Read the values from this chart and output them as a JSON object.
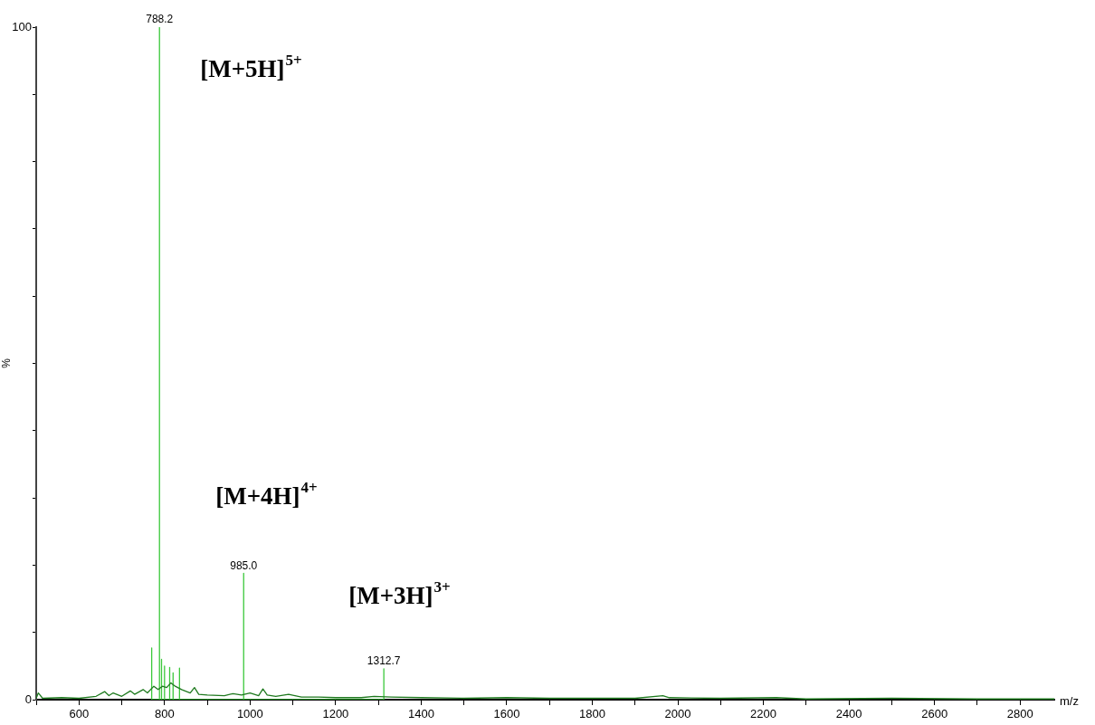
{
  "chart_data": {
    "type": "line",
    "xlabel": "m/z",
    "ylabel": "%",
    "xlim": [
      500,
      2880
    ],
    "ylim": [
      0,
      100
    ],
    "xticks": [
      {
        "value": 500,
        "label": null
      },
      600,
      {
        "value": 700,
        "label": null
      },
      800,
      {
        "value": 900,
        "label": null
      },
      1000,
      {
        "value": 1100,
        "label": null
      },
      1200,
      {
        "value": 1300,
        "label": null
      },
      1400,
      {
        "value": 1500,
        "label": null
      },
      1600,
      {
        "value": 1700,
        "label": null
      },
      1800,
      {
        "value": 1900,
        "label": null
      },
      2000,
      {
        "value": 2100,
        "label": null
      },
      2200,
      {
        "value": 2300,
        "label": null
      },
      2400,
      {
        "value": 2500,
        "label": null
      },
      2600,
      {
        "value": 2700,
        "label": null
      },
      2800
    ],
    "yticks": [
      0,
      {
        "value": 10,
        "label": null
      },
      {
        "value": 20,
        "label": null
      },
      {
        "value": 30,
        "label": null
      },
      {
        "value": 40,
        "label": null
      },
      {
        "value": 50,
        "label": null
      },
      {
        "value": 60,
        "label": null
      },
      {
        "value": 70,
        "label": null
      },
      {
        "value": 80,
        "label": null
      },
      {
        "value": 90,
        "label": null
      },
      100
    ],
    "grid": false,
    "legend": false,
    "marker": "none",
    "line_style": "solid",
    "series": [
      {
        "color": "#1f7a1f",
        "x": [
          500,
          505,
          515,
          560,
          600,
          640,
          660,
          670,
          680,
          700,
          720,
          730,
          750,
          760,
          775,
          785,
          795,
          805,
          815,
          825,
          840,
          860,
          870,
          880,
          900,
          940,
          960,
          980,
          1000,
          1020,
          1030,
          1040,
          1060,
          1090,
          1120,
          1160,
          1200,
          1260,
          1290,
          1330,
          1400,
          1500,
          1600,
          1700,
          1800,
          1900,
          1965,
          1980,
          2100,
          2230,
          2300,
          2500,
          2700,
          2880
        ],
        "values": [
          0.2,
          1.0,
          0.2,
          0.3,
          0.2,
          0.5,
          1.2,
          0.6,
          1.0,
          0.5,
          1.3,
          0.8,
          1.5,
          1.0,
          2.0,
          1.5,
          2.0,
          1.8,
          2.5,
          2.0,
          1.5,
          1.0,
          1.8,
          0.8,
          0.7,
          0.6,
          0.9,
          0.7,
          1.0,
          0.6,
          1.6,
          0.7,
          0.5,
          0.8,
          0.4,
          0.4,
          0.3,
          0.3,
          0.5,
          0.4,
          0.3,
          0.2,
          0.3,
          0.2,
          0.2,
          0.2,
          0.6,
          0.3,
          0.2,
          0.3,
          0.1,
          0.2,
          0.1,
          0.1
        ]
      },
      {
        "color": "#3cc83c",
        "x": [
          770,
          770,
          770,
          788.2,
          788.2,
          788.2,
          793,
          793,
          793,
          800,
          800,
          800,
          812,
          812,
          812,
          820,
          820,
          820,
          835,
          835,
          835,
          985.0,
          985.0,
          985.0,
          1312.7,
          1312.7,
          1312.7
        ],
        "values": [
          0,
          7.7,
          0,
          0,
          100,
          0,
          0,
          6,
          0,
          0,
          5,
          0,
          0,
          4.8,
          0,
          0,
          4.0,
          0,
          0,
          4.7,
          0,
          0,
          18.8,
          0,
          0,
          4.6,
          0
        ]
      }
    ],
    "annotations": [
      {
        "text": "788.2",
        "x": 788.2,
        "y": 100
      },
      {
        "text": "985.0",
        "x": 985.0,
        "y": 18.8
      },
      {
        "text": "1312.7",
        "x": 1312.7,
        "y": 4.6
      },
      {
        "text": "[M+5H]$^{5+}$",
        "x": 788.2,
        "y": 100
      },
      {
        "text": "[M+4H]$^{4+}$",
        "x": 985.0,
        "y": 18.8
      },
      {
        "text": "[M+3H]$^{3+}$",
        "x": 1312.7,
        "y": 4.6
      }
    ]
  }
}
